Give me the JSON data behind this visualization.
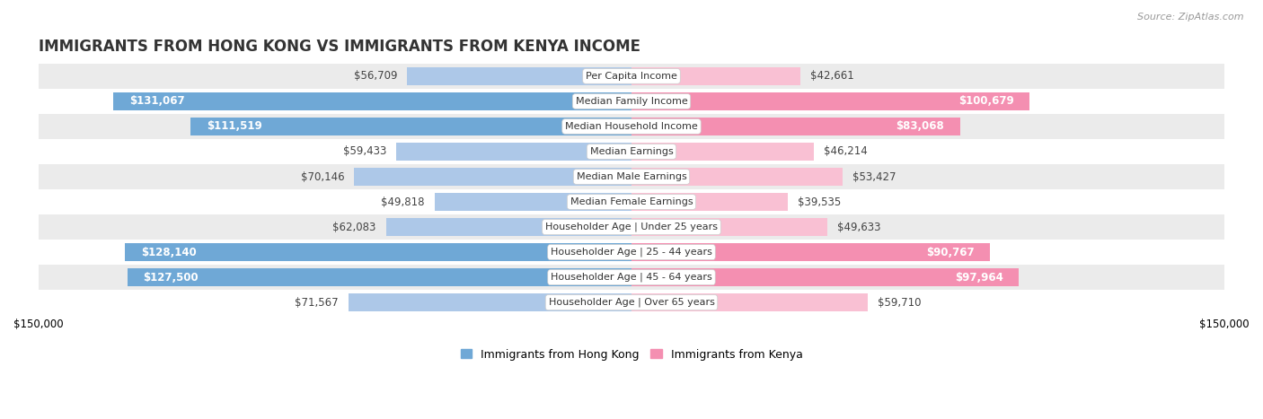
{
  "title": "IMMIGRANTS FROM HONG KONG VS IMMIGRANTS FROM KENYA INCOME",
  "source": "Source: ZipAtlas.com",
  "categories": [
    "Per Capita Income",
    "Median Family Income",
    "Median Household Income",
    "Median Earnings",
    "Median Male Earnings",
    "Median Female Earnings",
    "Householder Age | Under 25 years",
    "Householder Age | 25 - 44 years",
    "Householder Age | 45 - 64 years",
    "Householder Age | Over 65 years"
  ],
  "hong_kong_values": [
    56709,
    131067,
    111519,
    59433,
    70146,
    49818,
    62083,
    128140,
    127500,
    71567
  ],
  "kenya_values": [
    42661,
    100679,
    83068,
    46214,
    53427,
    39535,
    49633,
    90767,
    97964,
    59710
  ],
  "hong_kong_labels": [
    "$56,709",
    "$131,067",
    "$111,519",
    "$59,433",
    "$70,146",
    "$49,818",
    "$62,083",
    "$128,140",
    "$127,500",
    "$71,567"
  ],
  "kenya_labels": [
    "$42,661",
    "$100,679",
    "$83,068",
    "$46,214",
    "$53,427",
    "$39,535",
    "$49,633",
    "$90,767",
    "$97,964",
    "$59,710"
  ],
  "hk_color_full": "#6fa8d6",
  "hk_color_light": "#adc8e8",
  "kenya_color_full": "#f48fb1",
  "kenya_color_light": "#f9c0d3",
  "bar_height": 0.72,
  "max_value": 150000,
  "legend_hk": "Immigrants from Hong Kong",
  "legend_kenya": "Immigrants from Kenya",
  "row_bg_odd": "#ebebeb",
  "row_bg_even": "#ffffff",
  "label_fontsize": 8.5,
  "category_fontsize": 8.0,
  "title_fontsize": 12,
  "source_fontsize": 8,
  "threshold": 80000
}
